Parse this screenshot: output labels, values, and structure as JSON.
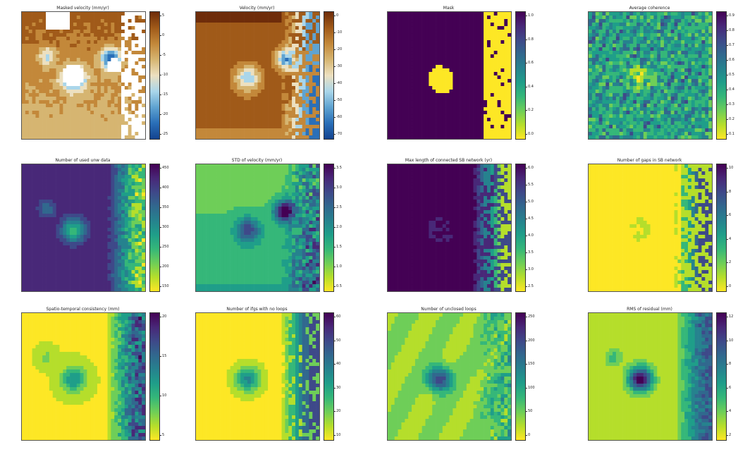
{
  "colors": {
    "viridis": [
      "#fde725",
      "#b5de2b",
      "#6ece58",
      "#35b779",
      "#1f9e89",
      "#26828e",
      "#31688e",
      "#3e4989",
      "#482878",
      "#440154"
    ],
    "roma_velocity": [
      "#6e2c0a",
      "#a05a19",
      "#c3883a",
      "#d6b571",
      "#ece0c0",
      "#aad6ea",
      "#5fa3d1",
      "#2a6fb8",
      "#14438f"
    ]
  },
  "panels": [
    {
      "title": "Masked velocity (mm/yr)",
      "colormap": "roma_velocity",
      "scale": "continuous",
      "colorbar_ticks": [
        "5",
        "0",
        "-5",
        "-10",
        "-15",
        "-20",
        "-25"
      ],
      "data_range": [
        -27,
        8
      ]
    },
    {
      "title": "Velocity (mm/yr)",
      "colormap": "roma_velocity",
      "scale": "continuous",
      "colorbar_ticks": [
        "0",
        "-10",
        "-20",
        "-30",
        "-40",
        "-50",
        "-60",
        "-70"
      ],
      "data_range": [
        -72,
        8
      ]
    },
    {
      "title": "Mask",
      "colormap": "viridis",
      "scale": "binary",
      "colorbar_ticks": [
        "1.0",
        "0.8",
        "0.6",
        "0.4",
        "0.2",
        "0.0"
      ],
      "data_range": [
        0,
        1
      ]
    },
    {
      "title": "Average coherence",
      "colormap": "viridis",
      "scale": "continuous",
      "colorbar_ticks": [
        "0.9",
        "0.8",
        "0.7",
        "0.6",
        "0.5",
        "0.4",
        "0.3",
        "0.2",
        "0.1"
      ],
      "data_range": [
        0.05,
        0.95
      ]
    },
    {
      "title": "Number of used unw data",
      "colormap": "viridis_r",
      "scale": "continuous",
      "colorbar_ticks": [
        "450",
        "400",
        "350",
        "300",
        "250",
        "200",
        "150"
      ],
      "data_range": [
        140,
        465
      ]
    },
    {
      "title": "STD of velocity (mm/yr)",
      "colormap": "viridis",
      "scale": "continuous",
      "colorbar_ticks": [
        "3.5",
        "3.0",
        "2.5",
        "2.0",
        "1.5",
        "1.0",
        "0.5"
      ],
      "data_range": [
        0.2,
        3.8
      ]
    },
    {
      "title": "Max length of connected SB network (yr)",
      "colormap": "viridis_r",
      "scale": "continuous",
      "colorbar_ticks": [
        "6.0",
        "5.5",
        "5.0",
        "4.5",
        "4.0",
        "3.5",
        "3.0",
        "2.5"
      ],
      "data_range": [
        2.2,
        6.1
      ]
    },
    {
      "title": "Number of gaps in SB network",
      "colormap": "viridis",
      "scale": "continuous",
      "colorbar_ticks": [
        "10",
        "8",
        "6",
        "4",
        "2",
        "0"
      ],
      "data_range": [
        0,
        10
      ]
    },
    {
      "title": "Spatio-temporal consistency (mm)",
      "colormap": "viridis",
      "scale": "continuous",
      "colorbar_ticks": [
        "20",
        "15",
        "10",
        "5"
      ],
      "data_range": [
        0,
        24
      ]
    },
    {
      "title": "Number of ifgs with no loops",
      "colormap": "viridis",
      "scale": "continuous",
      "colorbar_ticks": [
        "60",
        "50",
        "40",
        "30",
        "20",
        "10"
      ],
      "data_range": [
        0,
        62
      ]
    },
    {
      "title": "Number of unclosed loops",
      "colormap": "viridis",
      "scale": "continuous",
      "colorbar_ticks": [
        "250",
        "200",
        "150",
        "100",
        "50",
        "0"
      ],
      "data_range": [
        0,
        260
      ]
    },
    {
      "title": "RMS of residual (mm)",
      "colormap": "viridis",
      "scale": "continuous",
      "colorbar_ticks": [
        "12",
        "10",
        "8",
        "6",
        "4",
        "2"
      ],
      "data_range": [
        0,
        13
      ]
    }
  ],
  "chart_data": [
    {
      "type": "heatmap",
      "title": "Masked velocity (mm/yr)",
      "colorbar_ticks": [
        5,
        0,
        -5,
        -10,
        -15,
        -20,
        -25
      ],
      "range": [
        -27,
        8
      ]
    },
    {
      "type": "heatmap",
      "title": "Velocity (mm/yr)",
      "colorbar_ticks": [
        0,
        -10,
        -20,
        -30,
        -40,
        -50,
        -60,
        -70
      ],
      "range": [
        -72,
        8
      ]
    },
    {
      "type": "heatmap",
      "title": "Mask",
      "colorbar_ticks": [
        1.0,
        0.8,
        0.6,
        0.4,
        0.2,
        0.0
      ],
      "range": [
        0,
        1
      ]
    },
    {
      "type": "heatmap",
      "title": "Average coherence",
      "colorbar_ticks": [
        0.9,
        0.8,
        0.7,
        0.6,
        0.5,
        0.4,
        0.3,
        0.2,
        0.1
      ],
      "range": [
        0.05,
        0.95
      ]
    },
    {
      "type": "heatmap",
      "title": "Number of used unw data",
      "colorbar_ticks": [
        450,
        400,
        350,
        300,
        250,
        200,
        150
      ],
      "range": [
        140,
        465
      ]
    },
    {
      "type": "heatmap",
      "title": "STD of velocity (mm/yr)",
      "colorbar_ticks": [
        3.5,
        3.0,
        2.5,
        2.0,
        1.5,
        1.0,
        0.5
      ],
      "range": [
        0.2,
        3.8
      ]
    },
    {
      "type": "heatmap",
      "title": "Max length of connected SB network (yr)",
      "colorbar_ticks": [
        6.0,
        5.5,
        5.0,
        4.5,
        4.0,
        3.5,
        3.0,
        2.5
      ],
      "range": [
        2.2,
        6.1
      ]
    },
    {
      "type": "heatmap",
      "title": "Number of gaps in SB network",
      "colorbar_ticks": [
        10,
        8,
        6,
        4,
        2,
        0
      ],
      "range": [
        0,
        10
      ]
    },
    {
      "type": "heatmap",
      "title": "Spatio-temporal consistency (mm)",
      "colorbar_ticks": [
        20,
        15,
        10,
        5
      ],
      "range": [
        0,
        24
      ]
    },
    {
      "type": "heatmap",
      "title": "Number of ifgs with no loops",
      "colorbar_ticks": [
        60,
        50,
        40,
        30,
        20,
        10
      ],
      "range": [
        0,
        62
      ]
    },
    {
      "type": "heatmap",
      "title": "Number of unclosed loops",
      "colorbar_ticks": [
        250,
        200,
        150,
        100,
        50,
        0
      ],
      "range": [
        0,
        260
      ]
    },
    {
      "type": "heatmap",
      "title": "RMS of residual (mm)",
      "colorbar_ticks": [
        12,
        10,
        8,
        6,
        4,
        2
      ],
      "range": [
        0,
        13
      ]
    }
  ]
}
